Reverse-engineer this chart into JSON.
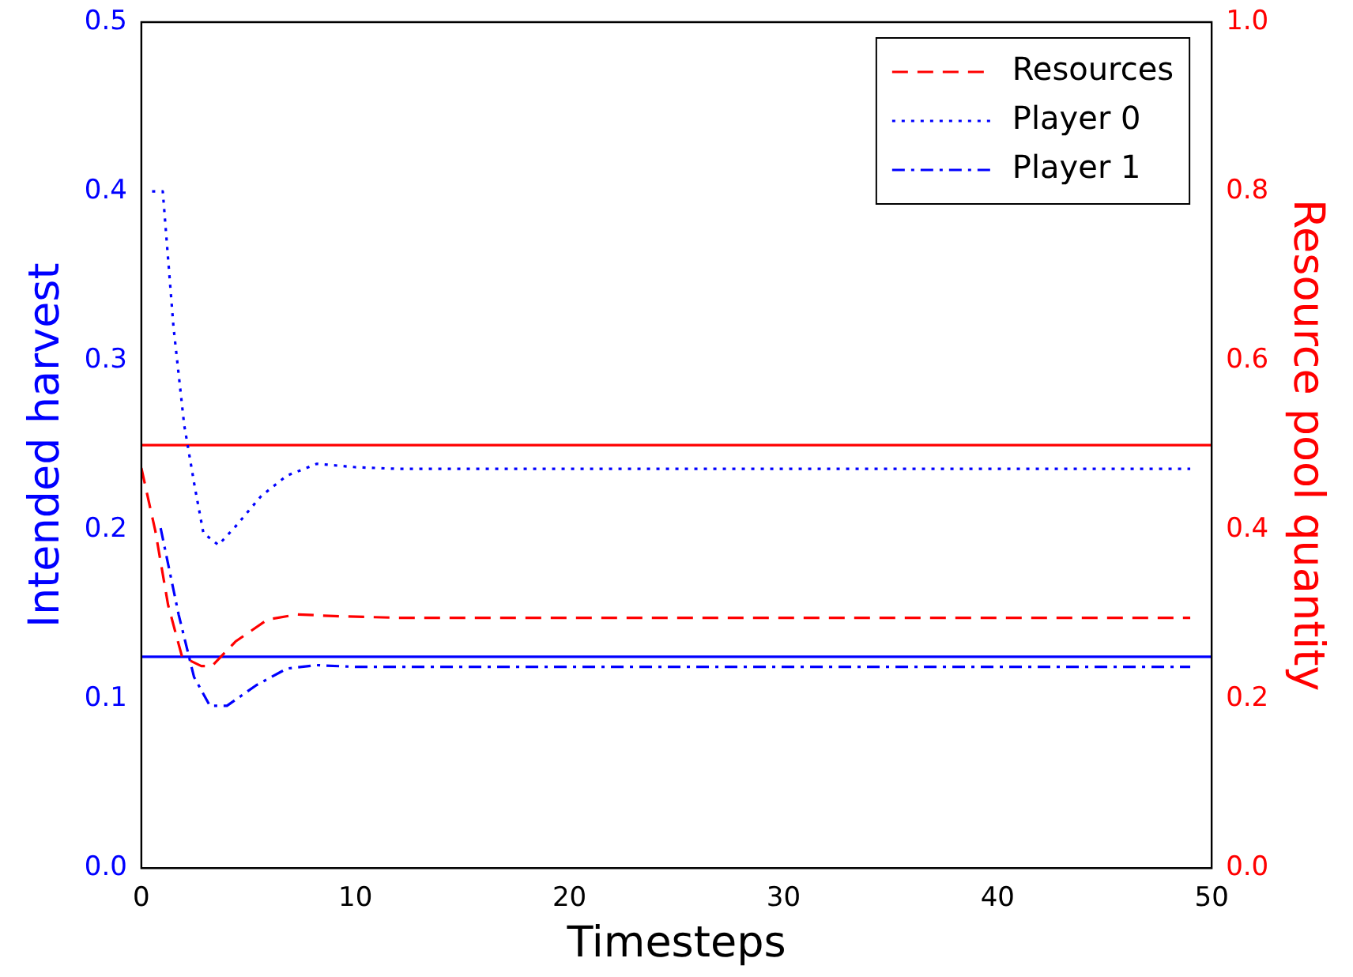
{
  "chart_data": {
    "type": "line",
    "xlabel": "Timesteps",
    "ylabel": "Intended harvest",
    "y2label": "Resource pool quantity",
    "xlim": [
      0,
      50
    ],
    "xticks": [
      0,
      10,
      20,
      30,
      40,
      50
    ],
    "ylim": [
      0,
      0.5
    ],
    "yticks": [
      {
        "value": 0,
        "label": "0.0"
      },
      0.1,
      0.2,
      0.3,
      0.4,
      0.5
    ],
    "y2lim": [
      0,
      1
    ],
    "y2ticks": [
      {
        "value": 0,
        "label": "0.0"
      },
      0.2,
      0.4,
      0.6,
      0.8,
      {
        "value": 1,
        "label": "1.0"
      }
    ],
    "grid": false,
    "legend": "top right",
    "marker": "none",
    "series": [
      {
        "name": "Resources",
        "color": "#ff0000",
        "axis": "y2",
        "line_style": "dashed",
        "x": [
          0,
          0.65,
          1.25,
          1.9,
          2.8,
          3.3,
          4.4,
          5.9,
          7.3,
          9,
          12,
          49
        ],
        "values": [
          0.473,
          0.399,
          0.311,
          0.25,
          0.239,
          0.239,
          0.268,
          0.294,
          0.3,
          0.298,
          0.296,
          0.296
        ]
      },
      {
        "name": "Player 0",
        "color": "#0000ff",
        "line_style": "dotted",
        "x": [
          0.5,
          1,
          1.5,
          2,
          2.5,
          2.9,
          3.6,
          4.4,
          5.6,
          6.8,
          8.2,
          10,
          12,
          49
        ],
        "values": [
          0.4,
          0.4,
          0.32,
          0.262,
          0.225,
          0.198,
          0.191,
          0.202,
          0.22,
          0.232,
          0.239,
          0.237,
          0.236,
          0.236
        ]
      },
      {
        "name": "Player 1",
        "color": "#0000ff",
        "line_style": "dashdot",
        "x": [
          0.9,
          1.74,
          2.46,
          3.2,
          4,
          5.35,
          6.8,
          8.2,
          10,
          12,
          49
        ],
        "values": [
          0.201,
          0.15,
          0.113,
          0.096,
          0.096,
          0.108,
          0.118,
          0.12,
          0.119,
          0.119,
          0.119
        ]
      }
    ],
    "ref_lines": [
      {
        "axis": "y2",
        "value": 0.5,
        "color": "#ff0000"
      },
      {
        "axis": "y",
        "value": 0.125,
        "color": "#0000ff"
      }
    ]
  }
}
